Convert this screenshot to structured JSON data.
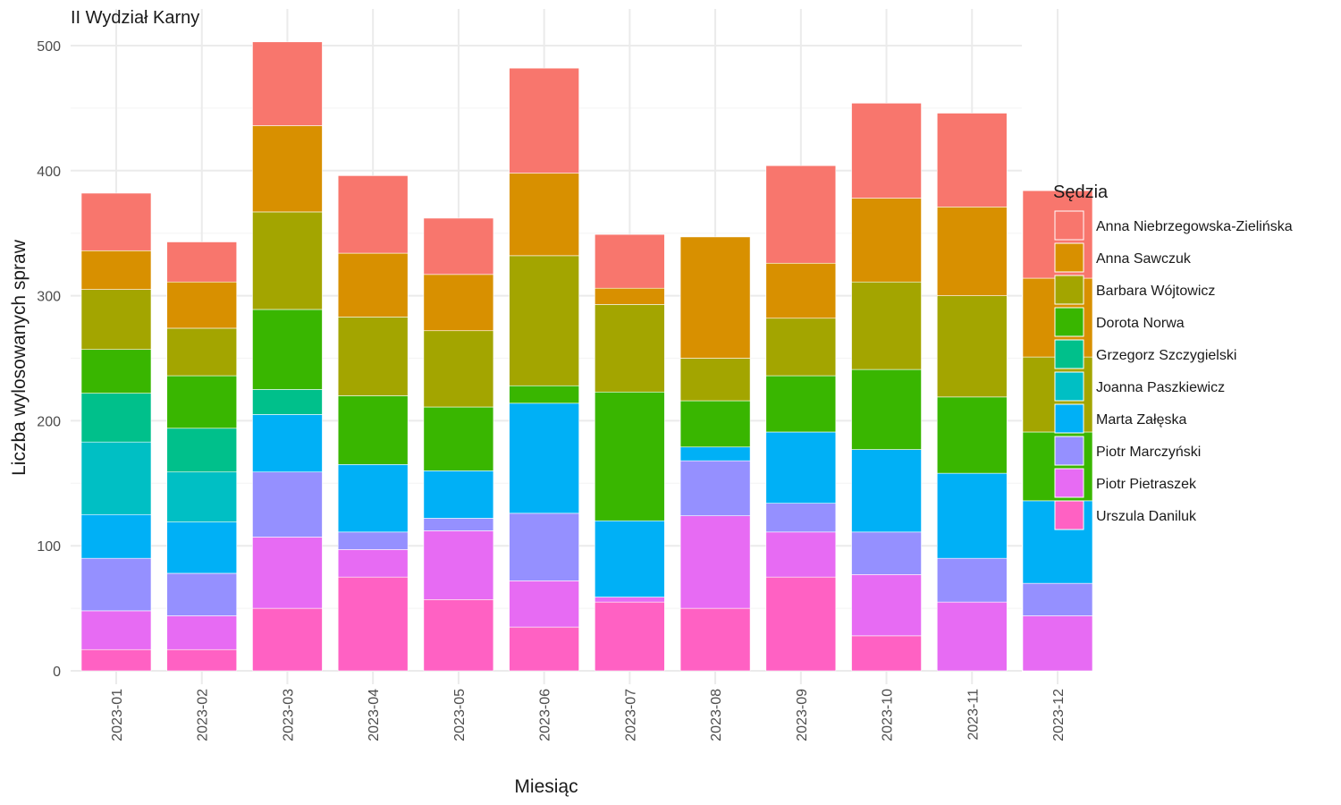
{
  "chart_data": {
    "type": "bar",
    "stacked": true,
    "title": "II Wydział Karny",
    "xlabel": "Miesiąc",
    "ylabel": "Liczba wylosowanych spraw",
    "ylim": [
      0,
      500
    ],
    "yticks": [
      0,
      100,
      200,
      300,
      400,
      500
    ],
    "grid": true,
    "legend": {
      "title": "Sędzia",
      "position": "right"
    },
    "categories": [
      "2023-01",
      "2023-02",
      "2023-03",
      "2023-04",
      "2023-05",
      "2023-06",
      "2023-07",
      "2023-08",
      "2023-09",
      "2023-10",
      "2023-11",
      "2023-12"
    ],
    "series": [
      {
        "name": "Urszula Daniluk",
        "color": "#FF61C3",
        "values": [
          17,
          17,
          50,
          75,
          57,
          35,
          55,
          50,
          75,
          28,
          0,
          0
        ]
      },
      {
        "name": "Piotr Pietraszek",
        "color": "#E76BF3",
        "values": [
          31,
          27,
          57,
          22,
          55,
          37,
          4,
          74,
          36,
          49,
          55,
          44
        ]
      },
      {
        "name": "Piotr Marczyński",
        "color": "#9590FF",
        "values": [
          42,
          34,
          52,
          14,
          10,
          54,
          0,
          44,
          23,
          34,
          35,
          26
        ]
      },
      {
        "name": "Marta Załęska",
        "color": "#00B0F6",
        "values": [
          35,
          41,
          46,
          54,
          38,
          88,
          61,
          11,
          57,
          66,
          68,
          66
        ]
      },
      {
        "name": "Joanna Paszkiewicz",
        "color": "#00BFC4",
        "values": [
          58,
          40,
          0,
          0,
          0,
          0,
          0,
          0,
          0,
          0,
          0,
          0
        ]
      },
      {
        "name": "Grzegorz Szczygielski",
        "color": "#00C08B",
        "values": [
          39,
          35,
          20,
          0,
          0,
          0,
          0,
          0,
          0,
          0,
          0,
          0
        ]
      },
      {
        "name": "Dorota Norwa",
        "color": "#39B600",
        "values": [
          35,
          42,
          64,
          55,
          51,
          14,
          103,
          37,
          45,
          64,
          61,
          55
        ]
      },
      {
        "name": "Barbara Wójtowicz",
        "color": "#A3A500",
        "values": [
          48,
          38,
          78,
          63,
          61,
          104,
          70,
          34,
          46,
          70,
          81,
          60
        ]
      },
      {
        "name": "Anna Sawczuk",
        "color": "#D89000",
        "values": [
          31,
          37,
          69,
          51,
          45,
          66,
          13,
          97,
          44,
          67,
          71,
          63
        ]
      },
      {
        "name": "Anna Niebrzegowska-Zielińska",
        "color": "#F8766D",
        "values": [
          46,
          32,
          67,
          62,
          45,
          84,
          43,
          0,
          78,
          76,
          75,
          70
        ]
      }
    ],
    "legend_order": [
      "Anna Niebrzegowska-Zielińska",
      "Anna Sawczuk",
      "Barbara Wójtowicz",
      "Dorota Norwa",
      "Grzegorz Szczygielski",
      "Joanna Paszkiewicz",
      "Marta Załęska",
      "Piotr Marczyński",
      "Piotr Pietraszek",
      "Urszula Daniluk"
    ]
  }
}
